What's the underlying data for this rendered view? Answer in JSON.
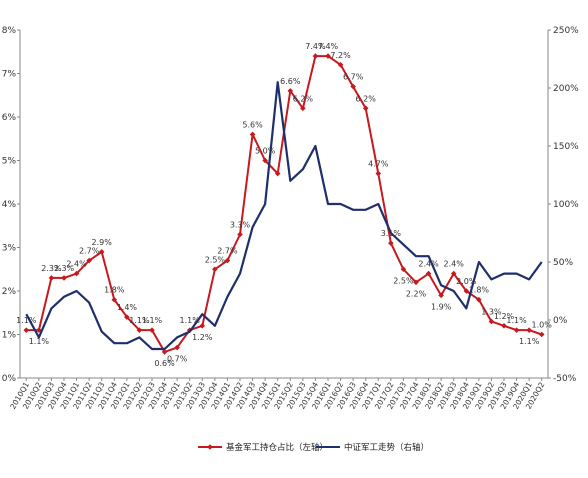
{
  "chart_data": {
    "type": "line",
    "categories": [
      "2010Q1",
      "2010Q2",
      "2010Q3",
      "2010Q4",
      "2011Q1",
      "2011Q2",
      "2011Q3",
      "2011Q4",
      "2012Q1",
      "2012Q2",
      "2012Q3",
      "2012Q4",
      "2013Q1",
      "2013Q2",
      "2013Q3",
      "2013Q4",
      "2014Q1",
      "2014Q2",
      "2014Q3",
      "2014Q4",
      "2015Q1",
      "2015Q2",
      "2015Q3",
      "2015Q4",
      "2016Q1",
      "2016Q2",
      "2016Q3",
      "2016Q4",
      "2017Q1",
      "2017Q2",
      "2017Q3",
      "2017Q4",
      "2018Q1",
      "2018Q2",
      "2018Q3",
      "2018Q4",
      "2019Q1",
      "2019Q2",
      "2019Q3",
      "2019Q4",
      "2020Q1",
      "2020Q2"
    ],
    "xtick_labels": [
      "2010Q1",
      "2010Q2",
      "2010Q3",
      "2010Q4",
      "2011Q1",
      "2011Q2",
      "2011Q3",
      "2011Q4",
      "2012Q1",
      "2012Q2",
      "2012Q3",
      "2012Q4",
      "2013Q1",
      "2013Q2",
      "2013Q3",
      "2013Q4",
      "2014Q1",
      "2014Q2",
      "2014Q3",
      "2014Q4",
      "2015Q1",
      "2015Q2",
      "2015Q3",
      "2015Q4",
      "2016Q1",
      "2016Q2",
      "2016Q3",
      "2016Q4",
      "2017Q1",
      "2017Q2",
      "2017Q3",
      "2017Q4",
      "2018Q1",
      "2018Q2",
      "2018Q3",
      "2018Q4",
      "2019Q1",
      "2019Q2",
      "2019Q3",
      "2019Q4",
      "2020Q1",
      "2020Q2"
    ],
    "left_axis": {
      "ylim": [
        0,
        8
      ],
      "ticks": [
        "0%",
        "1%",
        "2%",
        "3%",
        "4%",
        "5%",
        "6%",
        "7%",
        "8%"
      ]
    },
    "right_axis": {
      "ylim": [
        -50,
        250
      ],
      "ticks": [
        "-50%",
        "0%",
        "50%",
        "100%",
        "150%",
        "200%",
        "250%"
      ]
    },
    "series": [
      {
        "name": "基金军工持仓占比（左轴）",
        "color": "#c8191e",
        "axis": "left",
        "marker": "diamond",
        "values": [
          1.1,
          1.1,
          2.3,
          2.3,
          2.4,
          2.7,
          2.9,
          1.8,
          1.4,
          1.1,
          1.1,
          0.6,
          0.7,
          1.1,
          1.2,
          2.5,
          2.7,
          3.3,
          5.6,
          5.0,
          4.7,
          6.6,
          6.2,
          7.4,
          7.4,
          7.2,
          6.7,
          6.2,
          4.7,
          3.1,
          2.5,
          2.2,
          2.4,
          1.9,
          2.4,
          2.0,
          1.8,
          1.3,
          1.2,
          1.1,
          1.1,
          1.0
        ],
        "labels": [
          "1.1%",
          "1.1%",
          "2.3%",
          "2.3%",
          "2.4%",
          "2.7%",
          "2.9%",
          "1.8%",
          "1.4%",
          "1.1%",
          "1.1%",
          "0.6%",
          "0.7%",
          "1.1%",
          "1.2%",
          "2.5%",
          "2.7%",
          "3.3%",
          "5.6%",
          "5.0%",
          "",
          "6.6%",
          "6.2%",
          "7.4%",
          "7.4%",
          "7.2%",
          "6.7%",
          "6.2%",
          "4.7%",
          "3.1%",
          "2.5%",
          "2.2%",
          "2.4%",
          "1.9%",
          "2.4%",
          "2.0%",
          "1.8%",
          "1.3%",
          "1.2%",
          "1.1%",
          "1.1%",
          "1.0%"
        ]
      },
      {
        "name": "中证军工走势（右轴）",
        "color": "#1f2f6e",
        "axis": "right",
        "values": [
          5,
          -15,
          10,
          20,
          25,
          15,
          -10,
          -20,
          -20,
          -15,
          -25,
          -25,
          -15,
          -10,
          5,
          -5,
          20,
          40,
          80,
          100,
          205,
          120,
          130,
          150,
          100,
          100,
          95,
          95,
          100,
          75,
          65,
          55,
          55,
          30,
          25,
          10,
          50,
          35,
          40,
          40,
          35,
          50
        ]
      }
    ],
    "legend": {
      "placement": "bottom-center"
    }
  }
}
